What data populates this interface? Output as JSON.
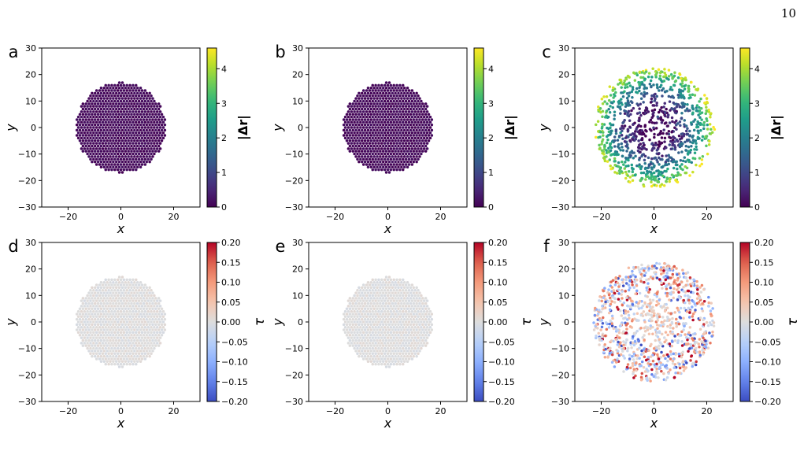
{
  "page": {
    "number": "10"
  },
  "colorbars": {
    "dr": {
      "label": "|Δr|",
      "ticks": [
        "0",
        "1",
        "2",
        "3",
        "4"
      ],
      "min": 0,
      "max": 4.6,
      "colormap": "viridis"
    },
    "tau": {
      "label": "τ",
      "ticks": [
        "0.20",
        "0.15",
        "0.10",
        "0.05",
        "0.00",
        "−0.05",
        "−0.10",
        "−0.15",
        "−0.20"
      ],
      "min": -0.2,
      "max": 0.2,
      "colormap": "coolwarm"
    }
  },
  "chart_data": [
    {
      "panel": "a",
      "type": "scatter",
      "xlabel": "x",
      "ylabel": "y",
      "xlim": [
        -30,
        30
      ],
      "ylim": [
        -30,
        30
      ],
      "xticks": [
        "−20",
        "0",
        "20"
      ],
      "yticks": [
        "30",
        "20",
        "10",
        "0",
        "−10",
        "−20",
        "−30"
      ],
      "colorbar": "dr",
      "cluster_radius": 17,
      "lattice": "hexagonal",
      "value_range": [
        0,
        0.2
      ]
    },
    {
      "panel": "b",
      "type": "scatter",
      "xlabel": "x",
      "ylabel": "y",
      "xlim": [
        -30,
        30
      ],
      "ylim": [
        -30,
        30
      ],
      "xticks": [
        "−20",
        "0",
        "20"
      ],
      "yticks": [
        "30",
        "20",
        "10",
        "0",
        "−10",
        "−20",
        "−30"
      ],
      "colorbar": "dr",
      "cluster_radius": 17,
      "lattice": "hexagonal",
      "value_range": [
        0,
        0.2
      ]
    },
    {
      "panel": "c",
      "type": "scatter",
      "xlabel": "x",
      "ylabel": "y",
      "xlim": [
        -30,
        30
      ],
      "ylim": [
        -30,
        30
      ],
      "xticks": [
        "−20",
        "0",
        "20"
      ],
      "yticks": [
        "30",
        "20",
        "10",
        "0",
        "−10",
        "−20",
        "−30"
      ],
      "colorbar": "dr",
      "cluster_radius": 23,
      "lattice": "disordered",
      "value_range": [
        0,
        4.6
      ]
    },
    {
      "panel": "d",
      "type": "scatter",
      "xlabel": "x",
      "ylabel": "y",
      "xlim": [
        -30,
        30
      ],
      "ylim": [
        -30,
        30
      ],
      "xticks": [
        "−20",
        "0",
        "20"
      ],
      "yticks": [
        "30",
        "20",
        "10",
        "0",
        "−10",
        "−20",
        "−30"
      ],
      "colorbar": "tau",
      "cluster_radius": 17,
      "lattice": "hexagonal",
      "value_range": [
        -0.01,
        0.01
      ]
    },
    {
      "panel": "e",
      "type": "scatter",
      "xlabel": "x",
      "ylabel": "y",
      "xlim": [
        -30,
        30
      ],
      "ylim": [
        -30,
        30
      ],
      "xticks": [
        "−20",
        "0",
        "20"
      ],
      "yticks": [
        "30",
        "20",
        "10",
        "0",
        "−10",
        "−20",
        "−30"
      ],
      "colorbar": "tau",
      "cluster_radius": 17,
      "lattice": "hexagonal",
      "value_range": [
        -0.01,
        0.01
      ]
    },
    {
      "panel": "f",
      "type": "scatter",
      "xlabel": "x",
      "ylabel": "y",
      "xlim": [
        -30,
        30
      ],
      "ylim": [
        -30,
        30
      ],
      "xticks": [
        "−20",
        "0",
        "20"
      ],
      "yticks": [
        "30",
        "20",
        "10",
        "0",
        "−10",
        "−20",
        "−30"
      ],
      "colorbar": "tau",
      "cluster_radius": 23,
      "lattice": "disordered",
      "value_range": [
        -0.2,
        0.2
      ]
    }
  ]
}
